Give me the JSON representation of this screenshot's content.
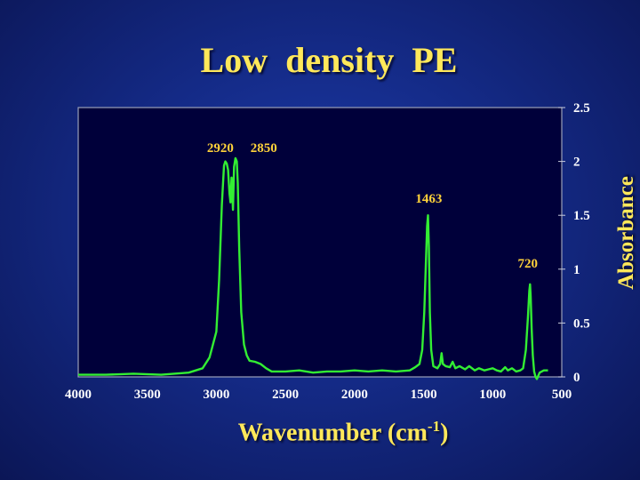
{
  "chart_data": {
    "type": "line",
    "title": "Low  density  PE",
    "xlabel": {
      "text": "Wavenumber (cm",
      "sup": "-1",
      "close": ")"
    },
    "ylabel": "Absorbance",
    "xlim": [
      4000,
      500
    ],
    "ylim": [
      0,
      2.5
    ],
    "x_ticks": [
      "4000",
      "3500",
      "3000",
      "2500",
      "2000",
      "1500",
      "1000",
      "500"
    ],
    "y_ticks": [
      "0",
      "0.5",
      "1",
      "1.5",
      "2",
      "2.5"
    ],
    "grid": false,
    "colors": {
      "line": "#33ee33",
      "plot_background": "#00003a",
      "frame": "#9aa0b8"
    },
    "annotations": [
      {
        "text": "2920",
        "x": 2920,
        "y": 2.07
      },
      {
        "text": "2850",
        "x": 2850,
        "y": 2.07
      },
      {
        "text": "1463",
        "x": 1463,
        "y": 1.6
      },
      {
        "text": "720",
        "x": 720,
        "y": 1.0
      }
    ],
    "series": [
      {
        "values": [
          [
            4000,
            0.02
          ],
          [
            3800,
            0.02
          ],
          [
            3600,
            0.03
          ],
          [
            3400,
            0.02
          ],
          [
            3200,
            0.04
          ],
          [
            3100,
            0.08
          ],
          [
            3050,
            0.18
          ],
          [
            3000,
            0.42
          ],
          [
            2980,
            0.9
          ],
          [
            2960,
            1.6
          ],
          [
            2945,
            1.96
          ],
          [
            2935,
            2.0
          ],
          [
            2925,
            1.98
          ],
          [
            2915,
            1.92
          ],
          [
            2905,
            1.7
          ],
          [
            2898,
            1.62
          ],
          [
            2890,
            1.85
          ],
          [
            2880,
            1.55
          ],
          [
            2872,
            1.95
          ],
          [
            2862,
            2.03
          ],
          [
            2852,
            2.0
          ],
          [
            2845,
            1.8
          ],
          [
            2835,
            1.2
          ],
          [
            2820,
            0.6
          ],
          [
            2800,
            0.3
          ],
          [
            2780,
            0.2
          ],
          [
            2760,
            0.15
          ],
          [
            2720,
            0.14
          ],
          [
            2680,
            0.12
          ],
          [
            2640,
            0.08
          ],
          [
            2600,
            0.05
          ],
          [
            2500,
            0.05
          ],
          [
            2400,
            0.06
          ],
          [
            2300,
            0.04
          ],
          [
            2200,
            0.05
          ],
          [
            2100,
            0.05
          ],
          [
            2000,
            0.06
          ],
          [
            1900,
            0.05
          ],
          [
            1800,
            0.06
          ],
          [
            1700,
            0.05
          ],
          [
            1600,
            0.06
          ],
          [
            1560,
            0.09
          ],
          [
            1530,
            0.12
          ],
          [
            1510,
            0.25
          ],
          [
            1495,
            0.6
          ],
          [
            1485,
            1.0
          ],
          [
            1475,
            1.4
          ],
          [
            1468,
            1.5
          ],
          [
            1462,
            1.2
          ],
          [
            1455,
            0.6
          ],
          [
            1445,
            0.25
          ],
          [
            1430,
            0.1
          ],
          [
            1400,
            0.08
          ],
          [
            1380,
            0.12
          ],
          [
            1370,
            0.22
          ],
          [
            1360,
            0.12
          ],
          [
            1340,
            0.1
          ],
          [
            1310,
            0.09
          ],
          [
            1290,
            0.14
          ],
          [
            1270,
            0.08
          ],
          [
            1240,
            0.1
          ],
          [
            1200,
            0.07
          ],
          [
            1170,
            0.1
          ],
          [
            1130,
            0.06
          ],
          [
            1100,
            0.08
          ],
          [
            1060,
            0.06
          ],
          [
            1030,
            0.07
          ],
          [
            1000,
            0.08
          ],
          [
            970,
            0.06
          ],
          [
            940,
            0.05
          ],
          [
            910,
            0.09
          ],
          [
            890,
            0.06
          ],
          [
            860,
            0.08
          ],
          [
            830,
            0.05
          ],
          [
            800,
            0.06
          ],
          [
            780,
            0.08
          ],
          [
            760,
            0.25
          ],
          [
            745,
            0.55
          ],
          [
            735,
            0.8
          ],
          [
            730,
            0.86
          ],
          [
            725,
            0.75
          ],
          [
            718,
            0.45
          ],
          [
            710,
            0.2
          ],
          [
            700,
            0.05
          ],
          [
            690,
            0.0
          ],
          [
            680,
            -0.02
          ],
          [
            660,
            0.04
          ],
          [
            630,
            0.06
          ],
          [
            600,
            0.06
          ]
        ]
      }
    ]
  }
}
